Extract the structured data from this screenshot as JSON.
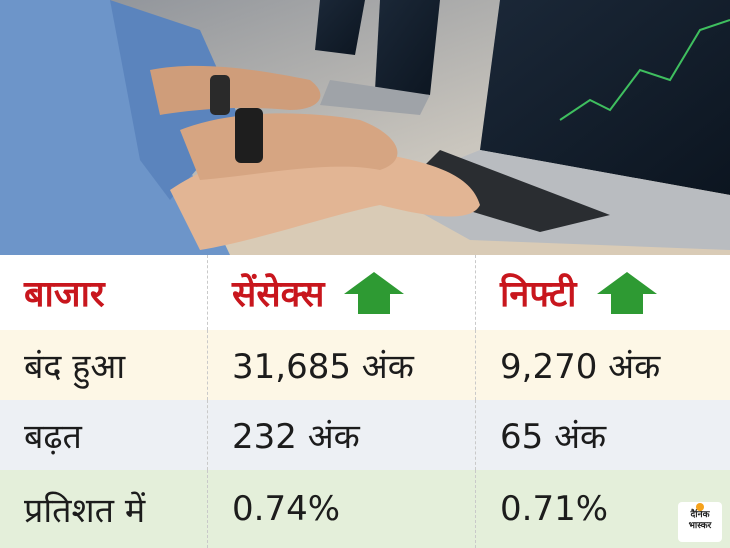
{
  "table": {
    "columns": [
      "बाजार",
      "सेंसेक्स",
      "निफ्टी"
    ],
    "rows": [
      [
        "बंद हुआ",
        "31,685 अंक",
        "9,270 अंक"
      ],
      [
        "बढ़त",
        "232 अंक",
        "65 अंक"
      ],
      [
        "प्रतिशत में",
        "0.74%",
        "0.71%"
      ]
    ]
  },
  "logo": {
    "line1": "दैनिक",
    "line2": "भास्कर"
  }
}
